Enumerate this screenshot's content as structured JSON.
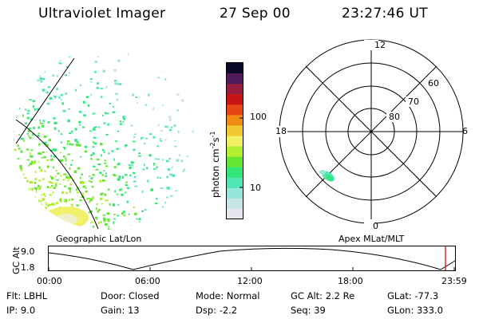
{
  "header": {
    "instrument": "Ultraviolet Imager",
    "date": "27 Sep 00",
    "time": "23:27:46 UT"
  },
  "left_panel": {
    "caption": "Geographic Lat/Lon"
  },
  "colorbar": {
    "unit_label": "photon cm",
    "unit_sup1": "-2",
    "unit_mid": "s",
    "unit_sup2": "-1",
    "ticks": [
      "100",
      "10"
    ],
    "scale": "log",
    "colors": [
      "#e6e6ee",
      "#c8e6e6",
      "#96e6dc",
      "#50e6b4",
      "#32e678",
      "#64e632",
      "#b4f032",
      "#f0f064",
      "#f0c832",
      "#f08c14",
      "#e64614",
      "#c81414",
      "#961e3c",
      "#50195a",
      "#0a0a28"
    ]
  },
  "right_panel": {
    "caption": "Apex MLat/MLT",
    "mlt_labels": [
      "12",
      "18",
      "6",
      "0"
    ],
    "lat_labels": [
      "60",
      "70",
      "80"
    ]
  },
  "altitude_plot": {
    "ylabel": "GC Alt",
    "yticks": [
      "9.0",
      "1.8"
    ],
    "xticks": [
      "00:00",
      "06:00",
      "12:00",
      "18:00",
      "23:59"
    ],
    "marker_color": "#d01010"
  },
  "status": {
    "row1": [
      {
        "key": "Flt:",
        "val": "LBHL"
      },
      {
        "key": "Door:",
        "val": "Closed"
      },
      {
        "key": "Mode:",
        "val": "Normal"
      },
      {
        "key": "GC Alt:",
        "val": "2.2 Re"
      },
      {
        "key": "GLat:",
        "val": "-77.3"
      }
    ],
    "row2": [
      {
        "key": "IP:",
        "val": "9.0"
      },
      {
        "key": "Gain:",
        "val": "13"
      },
      {
        "key": "Dsp:",
        "val": "-2.2"
      },
      {
        "key": "Seq:",
        "val": "39"
      },
      {
        "key": "GLon:",
        "val": "333.0"
      }
    ]
  }
}
